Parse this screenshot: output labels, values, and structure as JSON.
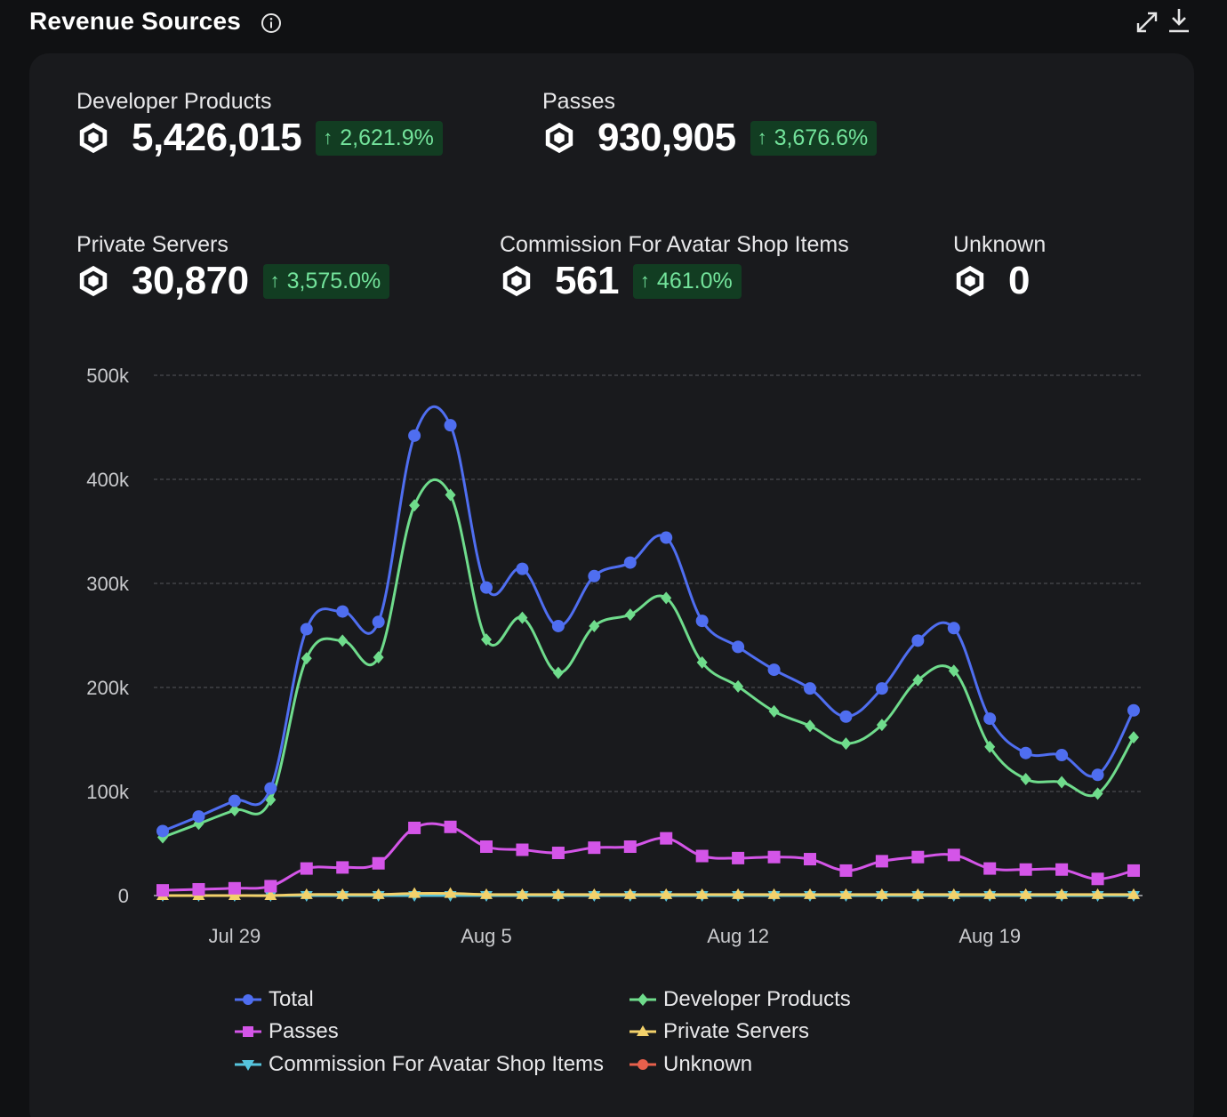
{
  "header": {
    "title": "Revenue Sources"
  },
  "stats": [
    {
      "label": "Developer Products",
      "value": "5,426,015",
      "delta": "2,621.9%"
    },
    {
      "label": "Passes",
      "value": "930,905",
      "delta": "3,676.6%"
    },
    {
      "label": "Private Servers",
      "value": "30,870",
      "delta": "3,575.0%"
    },
    {
      "label": "Commission For Avatar Shop Items",
      "value": "561",
      "delta": "461.0%"
    },
    {
      "label": "Unknown",
      "value": "0",
      "delta": null
    }
  ],
  "colors": {
    "total": "#4f6ef0",
    "developer_products": "#6fdc8c",
    "passes": "#d455e8",
    "private_servers": "#f2d16b",
    "commission": "#56c4dd",
    "unknown": "#e8604c",
    "delta_bg": "#123d22",
    "delta_text": "#73e39b"
  },
  "chart_data": {
    "type": "line",
    "x": [
      "Jul 27",
      "Jul 28",
      "Jul 29",
      "Jul 30",
      "Jul 31",
      "Aug 1",
      "Aug 2",
      "Aug 3",
      "Aug 4",
      "Aug 5",
      "Aug 6",
      "Aug 7",
      "Aug 8",
      "Aug 9",
      "Aug 10",
      "Aug 11",
      "Aug 12",
      "Aug 13",
      "Aug 14",
      "Aug 15",
      "Aug 16",
      "Aug 17",
      "Aug 18",
      "Aug 19",
      "Aug 20",
      "Aug 21",
      "Aug 22",
      "Aug 23"
    ],
    "x_ticks": [
      "Jul 29",
      "Aug 5",
      "Aug 12",
      "Aug 19"
    ],
    "y_ticks": [
      "0",
      "100k",
      "200k",
      "300k",
      "400k",
      "500k"
    ],
    "ylim": [
      0,
      500000
    ],
    "grid": true,
    "legend_position": "bottom",
    "series": [
      {
        "name": "Total",
        "key": "total",
        "marker": "circle",
        "values": [
          62000,
          76000,
          91000,
          103000,
          256000,
          273000,
          263000,
          442000,
          452000,
          296000,
          314000,
          259000,
          307000,
          320000,
          344000,
          264000,
          239000,
          217000,
          199000,
          172000,
          199000,
          245000,
          257000,
          170000,
          137000,
          135000,
          116000,
          178000
        ]
      },
      {
        "name": "Developer Products",
        "key": "developer_products",
        "marker": "diamond",
        "values": [
          56000,
          69000,
          82000,
          92000,
          228000,
          245000,
          229000,
          375000,
          385000,
          246000,
          267000,
          214000,
          259000,
          270000,
          286000,
          224000,
          201000,
          177000,
          163000,
          146000,
          164000,
          207000,
          216000,
          143000,
          112000,
          109000,
          98000,
          152000
        ]
      },
      {
        "name": "Passes",
        "key": "passes",
        "marker": "square",
        "values": [
          5000,
          6000,
          7000,
          9000,
          26000,
          27000,
          31000,
          65000,
          66000,
          47000,
          44000,
          41000,
          46000,
          47000,
          55000,
          38000,
          36000,
          37000,
          35000,
          24000,
          33000,
          37000,
          39000,
          26000,
          25000,
          25000,
          16000,
          24000
        ]
      },
      {
        "name": "Private Servers",
        "key": "private_servers",
        "marker": "triangle",
        "values": [
          0,
          0,
          0,
          0,
          1000,
          1000,
          1000,
          2000,
          2000,
          1000,
          1000,
          1000,
          1000,
          1000,
          1000,
          1000,
          1000,
          1000,
          1000,
          1000,
          1000,
          1000,
          1000,
          1000,
          1000,
          1000,
          1000,
          1000
        ]
      },
      {
        "name": "Commission For Avatar Shop Items",
        "key": "commission",
        "marker": "triangle-down",
        "values": [
          0,
          0,
          0,
          0,
          0,
          0,
          0,
          0,
          0,
          0,
          0,
          0,
          0,
          0,
          0,
          0,
          0,
          0,
          0,
          0,
          0,
          0,
          0,
          0,
          0,
          0,
          0,
          0
        ]
      },
      {
        "name": "Unknown",
        "key": "unknown",
        "marker": "circle",
        "values": [
          0,
          0,
          0,
          0,
          0,
          0,
          0,
          0,
          0,
          0,
          0,
          0,
          0,
          0,
          0,
          0,
          0,
          0,
          0,
          0,
          0,
          0,
          0,
          0,
          0,
          0,
          0,
          0
        ]
      }
    ]
  }
}
